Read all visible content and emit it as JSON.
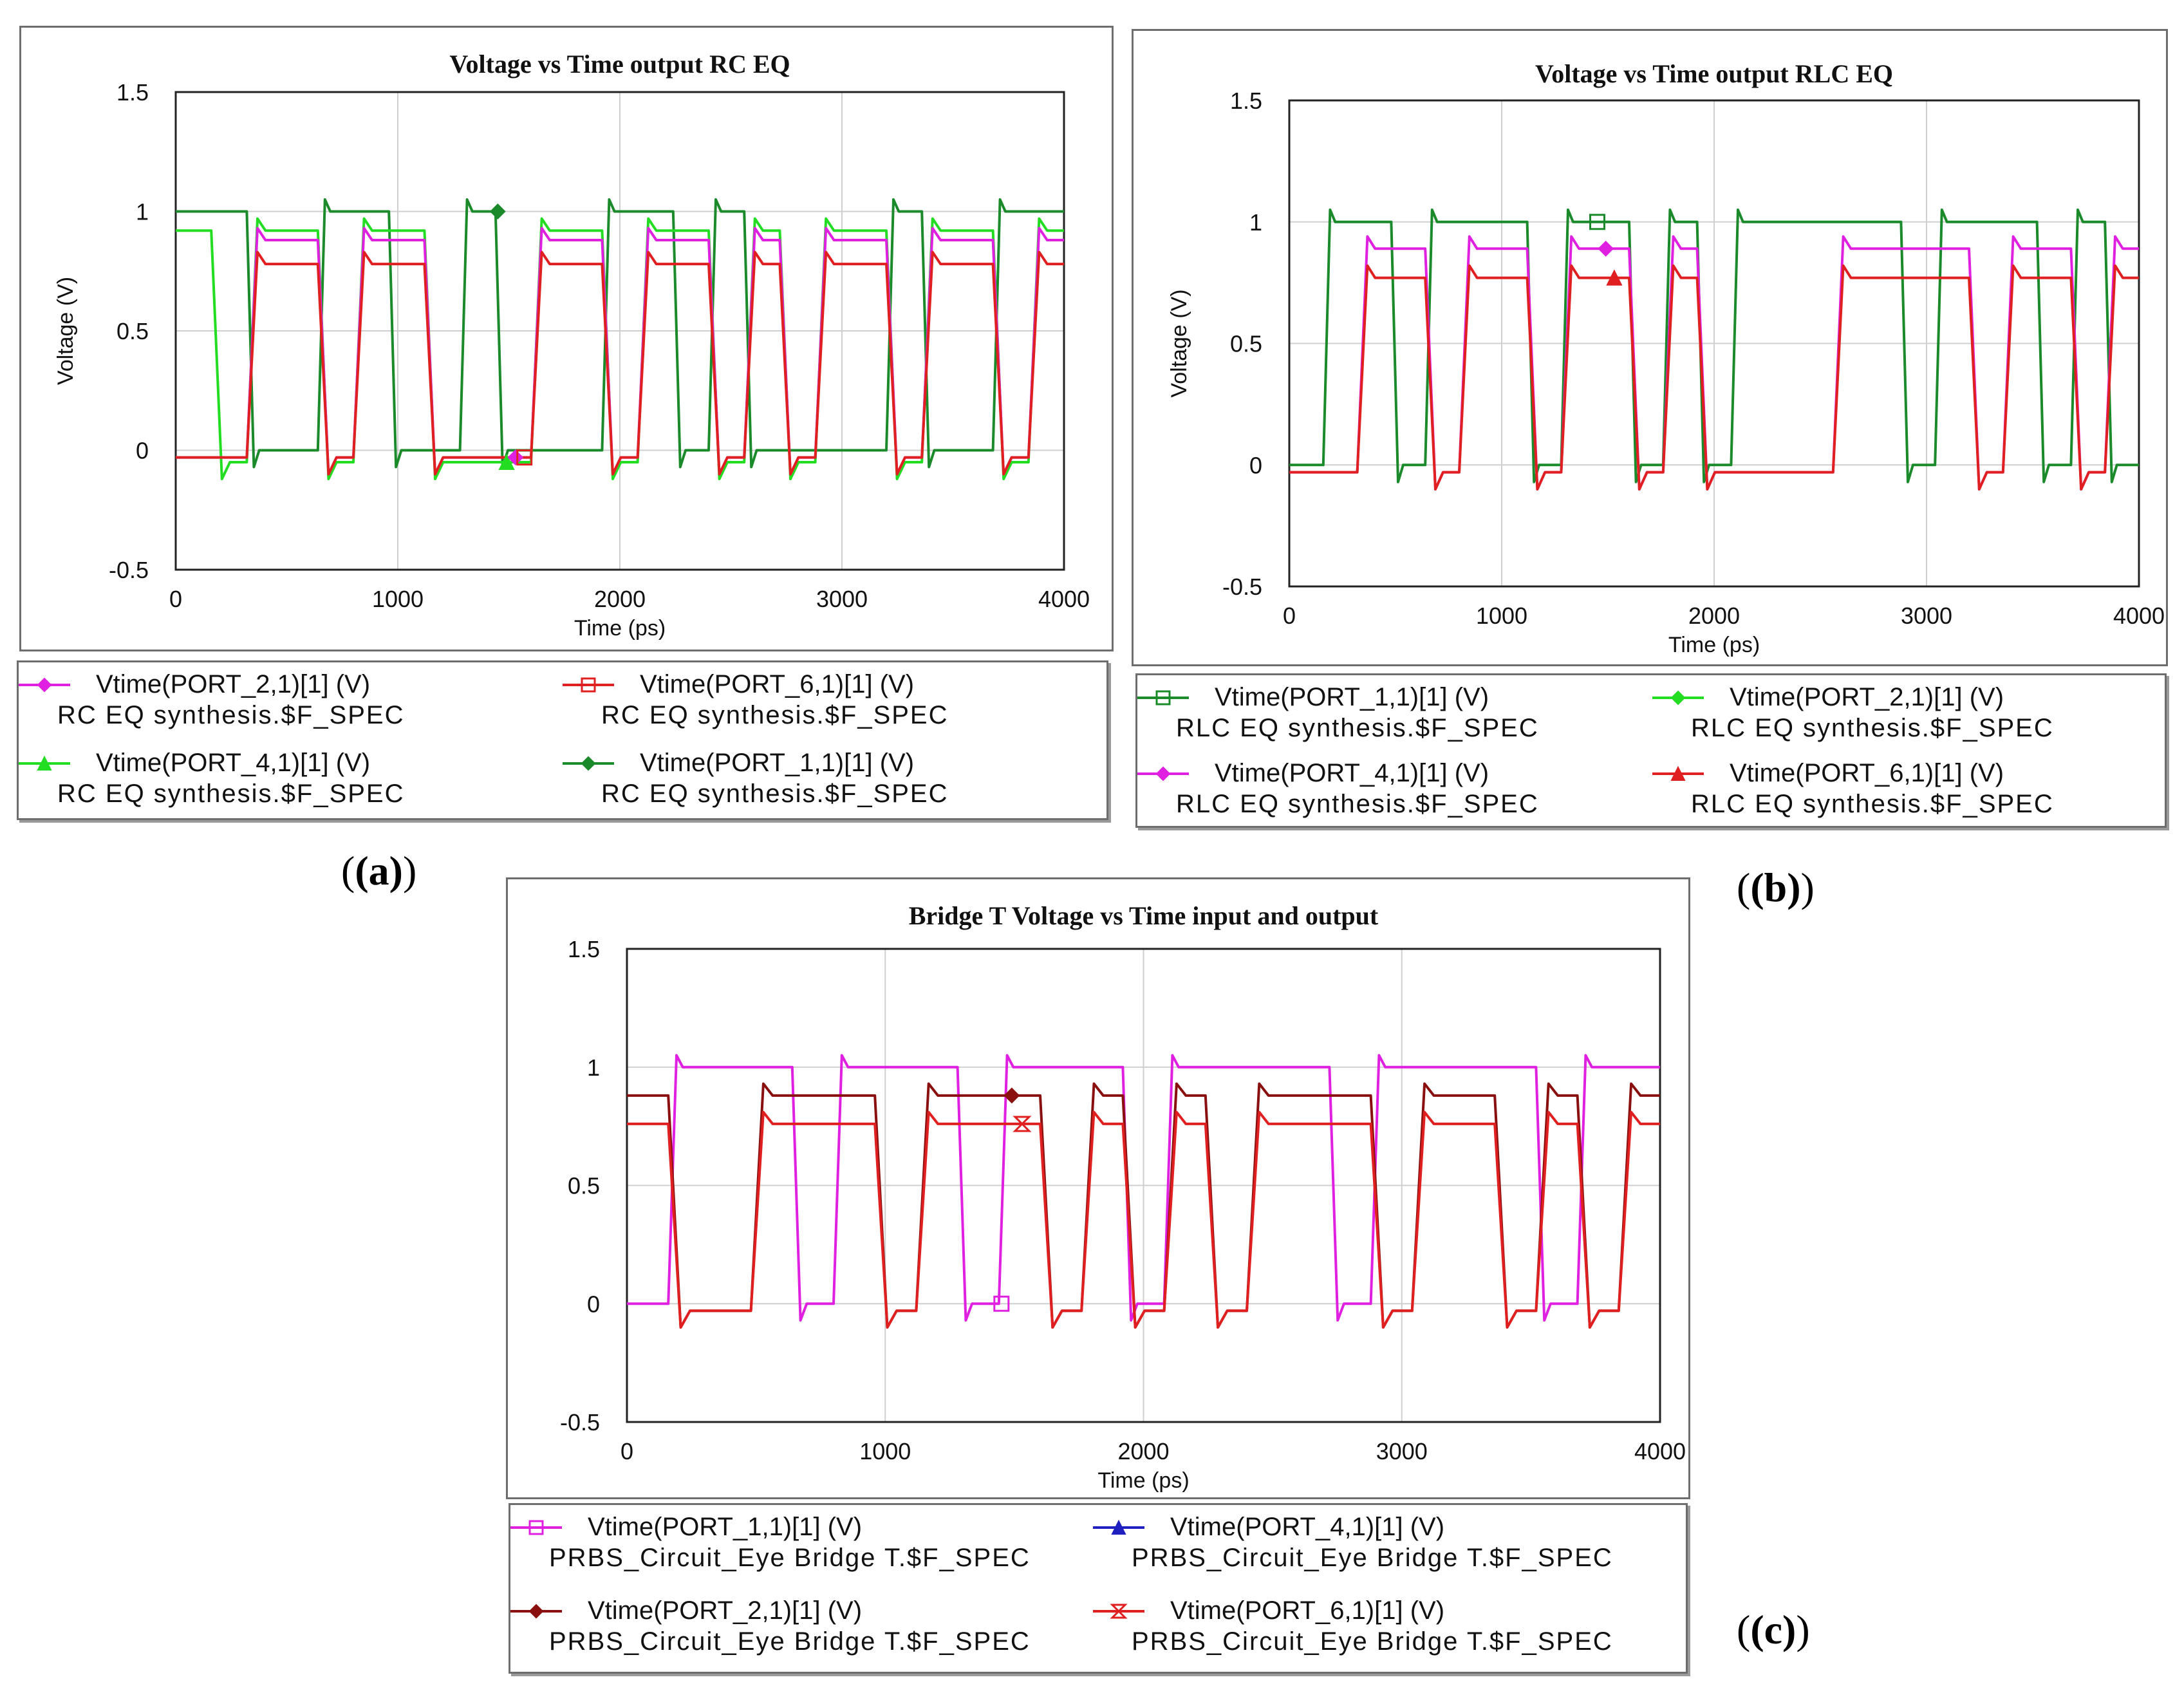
{
  "figure_labels": [
    "(a)",
    "(b)",
    "(c)"
  ],
  "chart_data": [
    {
      "id": "a",
      "type": "line",
      "title": "Voltage vs Time output RC EQ",
      "xlabel": "Time (ps)",
      "ylabel": "Voltage (V)",
      "xlim": [
        0,
        4000
      ],
      "ylim": [
        -0.5,
        1.5
      ],
      "xticks": [
        "0",
        "1000",
        "2000",
        "3000",
        "4000"
      ],
      "yticks": [
        "-0.5",
        "0",
        "0.5",
        "1",
        "1.5"
      ],
      "grid": true,
      "legend": [
        {
          "name": "Vtime(PORT_2,1)[1] (V)",
          "source": "RC EQ synthesis.$F_SPEC",
          "color": "#e020e0",
          "marker": "diamond"
        },
        {
          "name": "Vtime(PORT_6,1)[1] (V)",
          "source": "RC EQ synthesis.$F_SPEC",
          "color": "#e02020",
          "marker": "square"
        },
        {
          "name": "Vtime(PORT_4,1)[1] (V)",
          "source": "RC EQ synthesis.$F_SPEC",
          "color": "#22dd22",
          "marker": "triangle"
        },
        {
          "name": "Vtime(PORT_1,1)[1] (V)",
          "source": "RC EQ synthesis.$F_SPEC",
          "color": "#1a8a2a",
          "marker": "diamond"
        }
      ],
      "series": [
        {
          "name": "Vtime(PORT_1,1)[1] (V)",
          "color": "#1a8a2a",
          "level": 1.0,
          "base": 0,
          "bits": "1100110010001101000010011",
          "t0": 0,
          "bit": 160,
          "rise": 40
        },
        {
          "name": "Vtime(PORT_4,1)[1] (V)",
          "color": "#22dd22",
          "level": 0.92,
          "base": -0.05,
          "bits": "1011011000110110101101101",
          "t0": 0,
          "bit": 160,
          "rise": 60
        },
        {
          "name": "Vtime(PORT_2,1)[1] (V)",
          "color": "#e020e0",
          "level": 0.88,
          "base": -0.03,
          "bits": "0011011000110110101101101",
          "t0": 0,
          "bit": 160,
          "rise": 60
        },
        {
          "name": "Vtime(PORT_6,1)[1] (V)",
          "color": "#e02020",
          "level": 0.78,
          "base": -0.03,
          "bits": "0011011000110110101101101",
          "t0": 0,
          "bit": 160,
          "rise": 60
        }
      ]
    },
    {
      "id": "b",
      "type": "line",
      "title": "Voltage vs Time output RLC EQ",
      "xlabel": "Time (ps)",
      "ylabel": "Voltage (V)",
      "xlim": [
        0,
        4000
      ],
      "ylim": [
        -0.5,
        1.5
      ],
      "xticks": [
        "0",
        "1000",
        "2000",
        "3000",
        "4000"
      ],
      "yticks": [
        "-0.5",
        "0",
        "0.5",
        "1",
        "1.5"
      ],
      "grid": true,
      "legend": [
        {
          "name": "Vtime(PORT_1,1)[1] (V)",
          "source": "RLC EQ synthesis.$F_SPEC",
          "color": "#1a8a2a",
          "marker": "square"
        },
        {
          "name": "Vtime(PORT_2,1)[1] (V)",
          "source": "RLC EQ synthesis.$F_SPEC",
          "color": "#22dd22",
          "marker": "diamond"
        },
        {
          "name": "Vtime(PORT_4,1)[1] (V)",
          "source": "RLC EQ synthesis.$F_SPEC",
          "color": "#e020e0",
          "marker": "diamond"
        },
        {
          "name": "Vtime(PORT_6,1)[1] (V)",
          "source": "RLC EQ synthesis.$F_SPEC",
          "color": "#e02020",
          "marker": "triangle"
        }
      ],
      "series": [
        {
          "name": "Vtime(PORT_1,1)[1] (V)",
          "color": "#1a8a2a",
          "level": 1.0,
          "base": 0,
          "bits": "0110111011010111110111010",
          "t0": 0,
          "bit": 160,
          "rise": 40
        },
        {
          "name": "Vtime(PORT_4,1)[1] (V)",
          "color": "#e020e0",
          "level": 0.89,
          "base": -0.03,
          "bits": "0011011011010000111101101",
          "t0": 0,
          "bit": 160,
          "rise": 60
        },
        {
          "name": "Vtime(PORT_6,1)[1] (V)",
          "color": "#e02020",
          "level": 0.77,
          "base": -0.03,
          "bits": "0011011011010000111101101",
          "t0": 0,
          "bit": 160,
          "rise": 60
        }
      ]
    },
    {
      "id": "c",
      "type": "line",
      "title": "Bridge T Voltage vs Time input and output",
      "xlabel": "Time (ps)",
      "ylabel": "",
      "xlim": [
        0,
        4000
      ],
      "ylim": [
        -0.5,
        1.5
      ],
      "xticks": [
        "0",
        "1000",
        "2000",
        "3000",
        "4000"
      ],
      "yticks": [
        "-0.5",
        "0",
        "0.5",
        "1",
        "1.5"
      ],
      "grid": true,
      "legend": [
        {
          "name": "Vtime(PORT_1,1)[1] (V)",
          "source": "PRBS_Circuit_Eye Bridge T.$F_SPEC",
          "color": "#e020e0",
          "marker": "square"
        },
        {
          "name": "Vtime(PORT_4,1)[1] (V)",
          "source": "PRBS_Circuit_Eye Bridge T.$F_SPEC",
          "color": "#2020c0",
          "marker": "triangle"
        },
        {
          "name": "Vtime(PORT_2,1)[1] (V)",
          "source": "PRBS_Circuit_Eye Bridge T.$F_SPEC",
          "color": "#8a1010",
          "marker": "diamond"
        },
        {
          "name": "Vtime(PORT_6,1)[1] (V)",
          "source": "PRBS_Circuit_Eye Bridge T.$F_SPEC",
          "color": "#e02020",
          "marker": "hourglass"
        }
      ],
      "series": [
        {
          "name": "Vtime(PORT_1,1)[1] (V)",
          "color": "#e020e0",
          "level": 1.0,
          "base": 0,
          "bits": "0111011101110111101111011",
          "t0": 0,
          "bit": 160,
          "rise": 40
        },
        {
          "name": "Vtime(PORT_2,1)[1] (V)",
          "color": "#8a1010",
          "level": 0.88,
          "base": -0.03,
          "bits": "1001110111010101110110101",
          "t0": 0,
          "bit": 160,
          "rise": 60
        },
        {
          "name": "Vtime(PORT_6,1)[1] (V)",
          "color": "#e02020",
          "level": 0.76,
          "base": -0.03,
          "bits": "1001110111010101110110101",
          "t0": 0,
          "bit": 160,
          "rise": 60
        }
      ]
    }
  ]
}
